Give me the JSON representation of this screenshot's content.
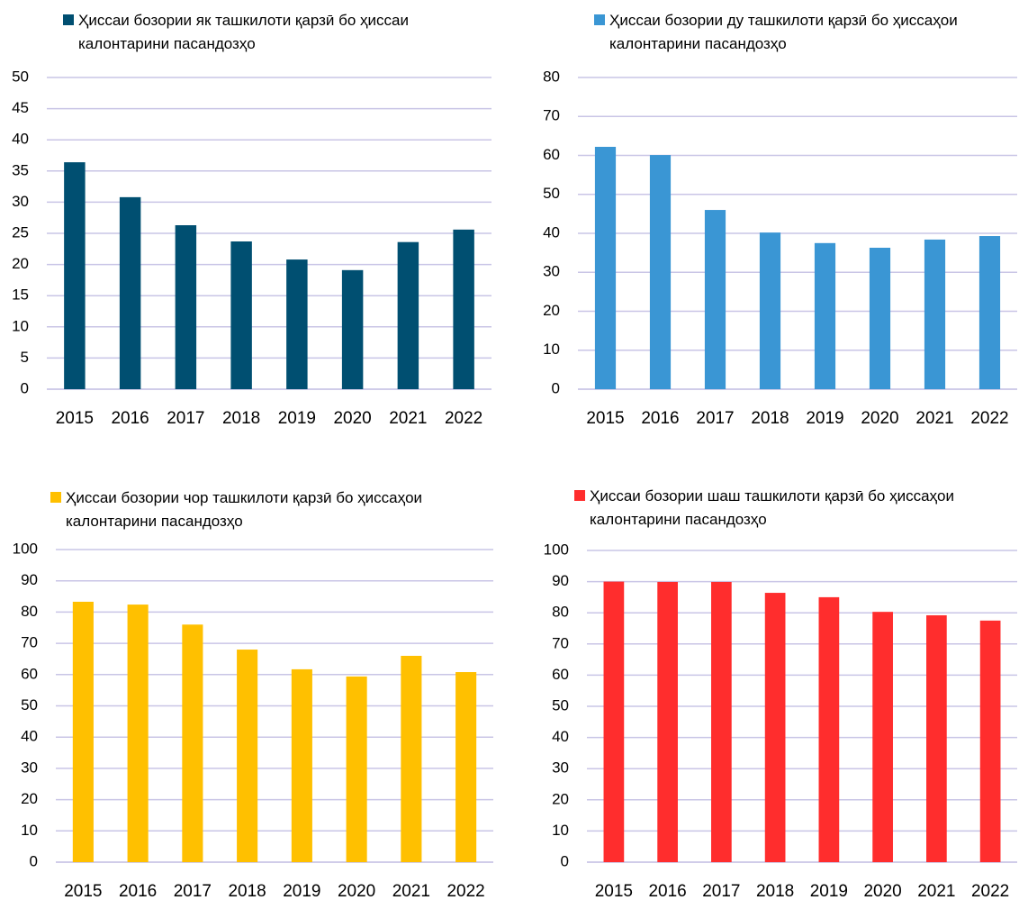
{
  "chart_data": [
    {
      "type": "bar",
      "categories": [
        "2015",
        "2016",
        "2017",
        "2018",
        "2019",
        "2020",
        "2021",
        "2022"
      ],
      "series": [
        {
          "name": "Ҳиссаи бозории як ташкилоти қарзӣ бо ҳиссаи калонтарини пасандозҳо",
          "color": "#004f71",
          "values": [
            36.4,
            30.8,
            26.3,
            23.7,
            20.8,
            19.1,
            23.6,
            25.6
          ]
        }
      ],
      "ylim": [
        0,
        50
      ],
      "yticks": [
        0,
        5,
        10,
        15,
        20,
        25,
        30,
        35,
        40,
        45,
        50
      ],
      "grid": true
    },
    {
      "type": "bar",
      "categories": [
        "2015",
        "2016",
        "2017",
        "2018",
        "2019",
        "2020",
        "2021",
        "2022"
      ],
      "series": [
        {
          "name": "Ҳиссаи бозории ду ташкилоти қарзӣ бо ҳиссаҳои калонтарини пасандозҳо",
          "color": "#3a96d4",
          "values": [
            62.2,
            60.1,
            46,
            40.2,
            37.5,
            36.3,
            38.4,
            39.3
          ]
        }
      ],
      "ylim": [
        0,
        80
      ],
      "yticks": [
        0,
        10,
        20,
        30,
        40,
        50,
        60,
        70,
        80
      ],
      "grid": true
    },
    {
      "type": "bar",
      "categories": [
        "2015",
        "2016",
        "2017",
        "2018",
        "2019",
        "2020",
        "2021",
        "2022"
      ],
      "series": [
        {
          "name": "Ҳиссаи бозории чор ташкилоти қарзӣ бо ҳиссаҳои калонтарини пасандозҳо",
          "color": "#ffc000",
          "values": [
            83.3,
            82.4,
            76,
            68,
            61.7,
            59.4,
            66,
            60.8
          ]
        }
      ],
      "ylim": [
        0,
        100
      ],
      "yticks": [
        0,
        10,
        20,
        30,
        40,
        50,
        60,
        70,
        80,
        90,
        100
      ],
      "grid": true
    },
    {
      "type": "bar",
      "categories": [
        "2015",
        "2016",
        "2017",
        "2018",
        "2019",
        "2020",
        "2021",
        "2022"
      ],
      "series": [
        {
          "name": "Ҳиссаи бозории шаш ташкилоти қарзӣ бо ҳиссаҳои калонтарини пасандозҳо",
          "color": "#ff2d2d",
          "values": [
            90,
            89.9,
            89.9,
            86.4,
            85,
            80.3,
            79.2,
            77.5
          ]
        }
      ],
      "ylim": [
        0,
        100
      ],
      "yticks": [
        0,
        10,
        20,
        30,
        40,
        50,
        60,
        70,
        80,
        90,
        100
      ],
      "grid": true
    }
  ]
}
